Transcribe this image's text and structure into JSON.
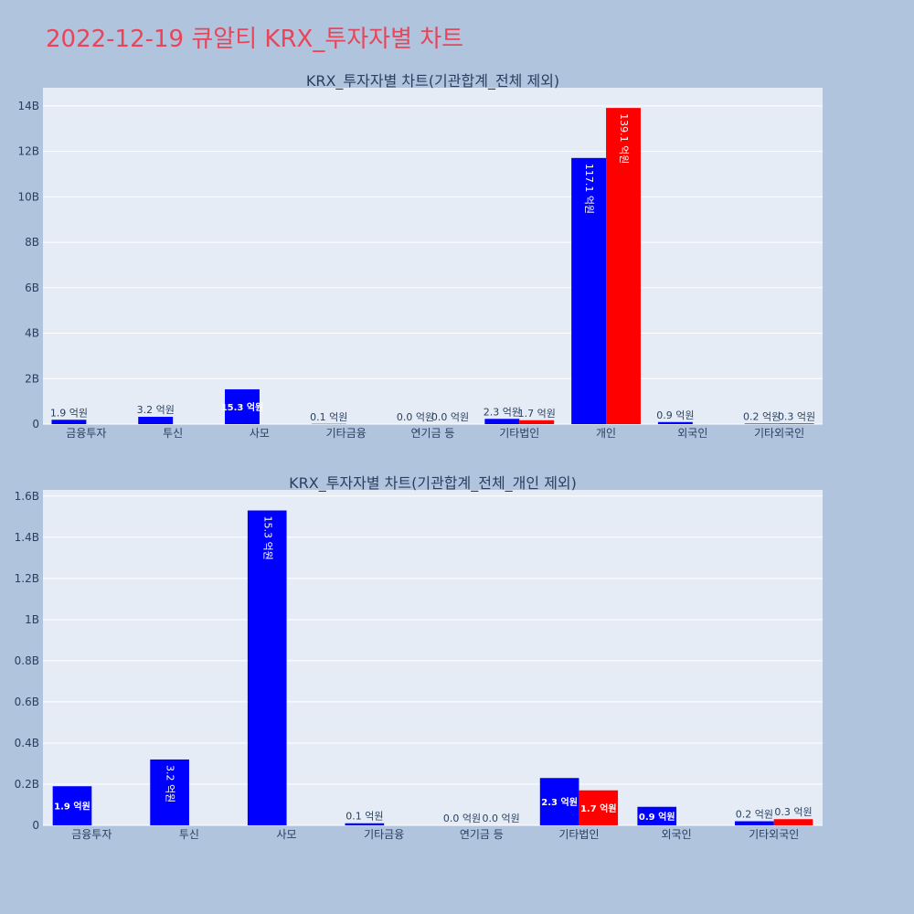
{
  "page": {
    "title": "2022-12-19 큐알티 KRX_투자자별 차트",
    "title_color": "#e8455a",
    "background": "#b0c4de",
    "plot_background": "#e5ecf6"
  },
  "chart_data": [
    {
      "type": "bar",
      "title": "KRX_투자자별 차트(기관합계_전체 제외)",
      "categories": [
        "금융투자",
        "투신",
        "사모",
        "기타금융",
        "연기금 등",
        "기타법인",
        "개인",
        "외국인",
        "기타외국인"
      ],
      "series": [
        {
          "color": "#0000ff",
          "values": [
            190000000,
            320000000,
            1530000000,
            10000000,
            0,
            230000000,
            11710000000,
            90000000,
            20000000
          ],
          "labels": [
            "1.9 억원",
            "3.2 억원",
            "15.3 억원",
            "0.1 억원",
            "0.0 억원",
            "2.3 억원",
            "117.1 억원",
            "0.9 억원",
            "0.2 억원"
          ]
        },
        {
          "color": "#ff0000",
          "values": [
            0,
            0,
            0,
            0,
            0,
            170000000,
            13910000000,
            0,
            30000000
          ],
          "labels": [
            "",
            "",
            "",
            "",
            "0.0 억원",
            "1.7 억원",
            "139.1 억원",
            "",
            "0.3 억원"
          ]
        }
      ],
      "ylim": [
        0,
        14800000000
      ],
      "yticks": [
        0,
        2000000000,
        4000000000,
        6000000000,
        8000000000,
        10000000000,
        12000000000,
        14000000000
      ],
      "ytick_labels": [
        "0",
        "2B",
        "4B",
        "6B",
        "8B",
        "10B",
        "12B",
        "14B"
      ],
      "grid": true,
      "xlabel": "",
      "ylabel": ""
    },
    {
      "type": "bar",
      "title": "KRX_투자자별 차트(기관합계_전체_개인 제외)",
      "categories": [
        "금융투자",
        "투신",
        "사모",
        "기타금융",
        "연기금 등",
        "기타법인",
        "외국인",
        "기타외국인"
      ],
      "series": [
        {
          "color": "#0000ff",
          "values": [
            190000000,
            320000000,
            1530000000,
            10000000,
            0,
            230000000,
            90000000,
            20000000
          ],
          "labels": [
            "1.9 억원",
            "3.2 억원",
            "15.3 억원",
            "0.1 억원",
            "0.0 억원",
            "2.3 억원",
            "0.9 억원",
            "0.2 억원"
          ]
        },
        {
          "color": "#ff0000",
          "values": [
            0,
            0,
            0,
            0,
            0,
            170000000,
            0,
            30000000
          ],
          "labels": [
            "",
            "",
            "",
            "",
            "0.0 억원",
            "1.7 억원",
            "",
            "0.3 억원"
          ]
        }
      ],
      "ylim": [
        0,
        1630000000
      ],
      "yticks": [
        0,
        200000000,
        400000000,
        600000000,
        800000000,
        1000000000,
        1200000000,
        1400000000,
        1600000000
      ],
      "ytick_labels": [
        "0",
        "0.2B",
        "0.4B",
        "0.6B",
        "0.8B",
        "1B",
        "1.2B",
        "1.4B",
        "1.6B"
      ],
      "grid": true,
      "xlabel": "",
      "ylabel": ""
    }
  ]
}
